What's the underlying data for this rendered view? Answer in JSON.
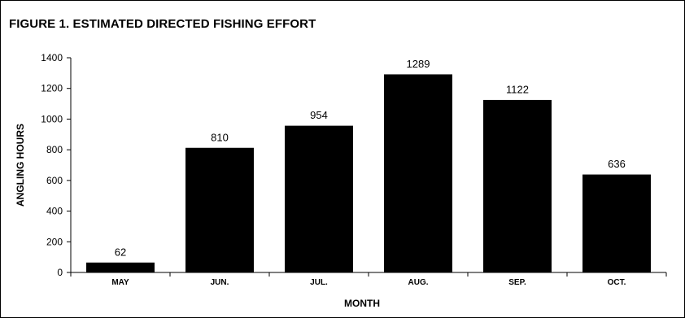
{
  "chart_data": {
    "type": "bar",
    "title": "FIGURE 1.  ESTIMATED DIRECTED FISHING EFFORT",
    "xlabel": "MONTH",
    "ylabel": "ANGLING HOURS",
    "categories": [
      "MAY",
      "JUN.",
      "JUL.",
      "AUG.",
      "SEP.",
      "OCT."
    ],
    "values": [
      62,
      810,
      954,
      1289,
      1122,
      636
    ],
    "data_labels": [
      "62",
      "810",
      "954",
      "1289",
      "1122",
      "636"
    ],
    "ylim": [
      0,
      1400
    ],
    "yticks": [
      0,
      200,
      400,
      600,
      800,
      1000,
      1200,
      1400
    ],
    "grid": false,
    "legend": "none",
    "bar_color": "#000000"
  }
}
